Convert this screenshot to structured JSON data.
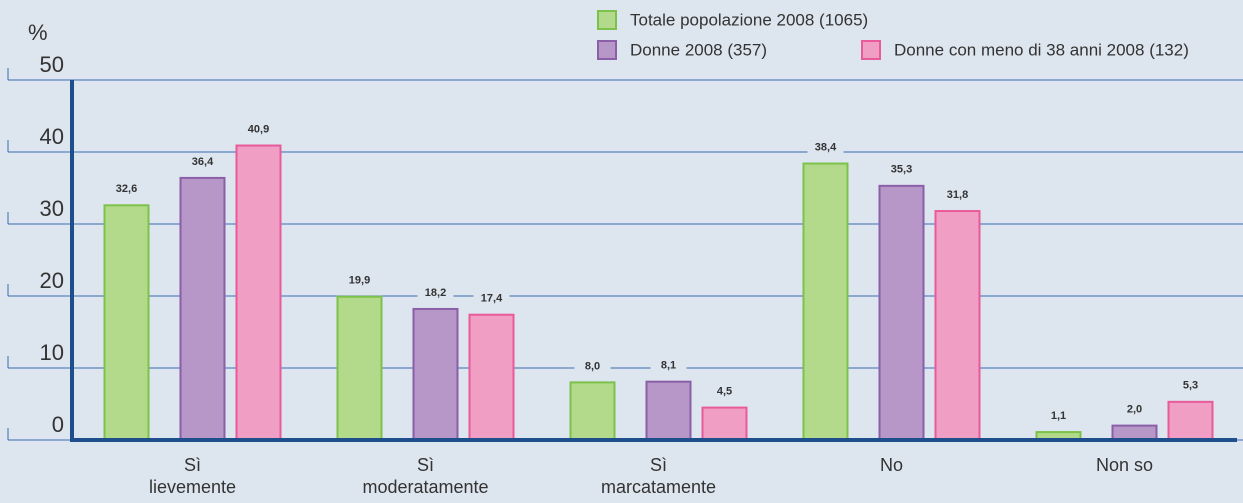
{
  "chart_data": {
    "type": "bar",
    "ylabel": "%",
    "categories": [
      "Sì\nlievemente",
      "Sì\nmoderatamente",
      "Sì\nmarcatamente",
      "No",
      "Non so"
    ],
    "series": [
      {
        "name": "Totale popolazione 2008 (1065)",
        "color": "#b3d98a",
        "stroke": "#7cc24a",
        "values": [
          32.6,
          19.9,
          8.0,
          38.4,
          1.1
        ],
        "value_labels": [
          "32,6",
          "19,9",
          "8,0",
          "38,4",
          "1,1"
        ]
      },
      {
        "name": "Donne 2008 (357)",
        "color": "#b796c8",
        "stroke": "#8a5fa8",
        "values": [
          36.4,
          18.2,
          8.1,
          35.3,
          2.0
        ],
        "value_labels": [
          "36,4",
          "18,2",
          "8,1",
          "35,3",
          "2,0"
        ]
      },
      {
        "name": "Donne con meno di 38 anni 2008 (132)",
        "color": "#f19ec4",
        "stroke": "#e85a9a",
        "values": [
          40.9,
          17.4,
          4.5,
          31.8,
          5.3
        ],
        "value_labels": [
          "40,9",
          "17,4",
          "4,5",
          "31,8",
          "5,3"
        ]
      }
    ],
    "ylim": [
      0,
      50
    ],
    "yticks": [
      0,
      10,
      20,
      30,
      40,
      50
    ],
    "grid": true,
    "legend": "top"
  }
}
